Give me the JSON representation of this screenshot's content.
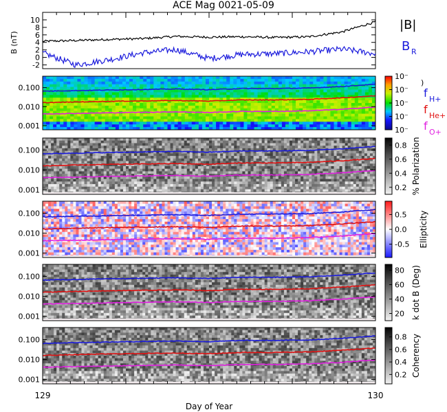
{
  "title": "ACE Mag 0021-05-09",
  "xlabel": "Day of Year",
  "x_ticks": [
    "129",
    "130"
  ],
  "colors": {
    "black": "#000000",
    "blue": "#1a1adc",
    "red": "#e01010",
    "magenta": "#e020e0",
    "ice": "#f1e9ec"
  },
  "chart_data": [
    {
      "type": "line",
      "panel": "magnetic field",
      "ylabel": "B (nT)",
      "ylim": [
        -3,
        12
      ],
      "y_ticks": [
        "10",
        "8",
        "6",
        "4",
        "2",
        "0",
        "-2"
      ],
      "x": [
        129.0,
        129.1,
        129.2,
        129.3,
        129.4,
        129.5,
        129.6,
        129.7,
        129.8,
        129.9,
        130.0
      ],
      "series": [
        {
          "name": "|B|",
          "color": "#000000",
          "values": [
            4.3,
            4.5,
            4.8,
            5.0,
            5.6,
            5.4,
            5.5,
            5.3,
            5.5,
            6.8,
            9.5
          ]
        },
        {
          "name": "B_R",
          "color": "#1a1adc",
          "values": [
            1.2,
            -2.0,
            -0.6,
            1.2,
            2.1,
            -0.3,
            0.8,
            1.0,
            1.5,
            2.2,
            1.0
          ]
        }
      ]
    },
    {
      "type": "heatmap",
      "panel": "power spectrum",
      "y_scale": "log",
      "ylim": [
        0.0006,
        0.4
      ],
      "y_ticks": [
        "0.100",
        "0.010",
        "0.001"
      ],
      "colorbar_ticks": [
        "10⁻",
        "10⁻",
        "10⁻",
        "10⁻",
        "10⁻"
      ],
      "legend": [
        "f_H+",
        "f_He+",
        "f_O+"
      ]
    },
    {
      "type": "heatmap",
      "panel": "polarization",
      "y_scale": "log",
      "ylim": [
        0.0006,
        0.4
      ],
      "y_ticks": [
        "0.100",
        "0.010",
        "0.001"
      ],
      "colorbar_label": "% Polarization",
      "colorbar_ticks": [
        "0.8",
        "0.6",
        "0.4",
        "0.2"
      ],
      "colorbar_values": [
        0.8,
        0.6,
        0.4,
        0.2
      ]
    },
    {
      "type": "heatmap",
      "panel": "ellipticity",
      "y_scale": "log",
      "ylim": [
        0.0006,
        0.4
      ],
      "y_ticks": [
        "0.100",
        "0.010",
        "0.001"
      ],
      "colorbar_label": "Ellipticity",
      "colorbar_ticks": [
        "0.5",
        "0.0",
        "-0.5"
      ],
      "colorbar_values": [
        0.5,
        0.0,
        -0.5
      ]
    },
    {
      "type": "heatmap",
      "panel": "k dot B",
      "y_scale": "log",
      "ylim": [
        0.0006,
        0.4
      ],
      "y_ticks": [
        "0.100",
        "0.010",
        "0.001"
      ],
      "colorbar_label": "k dot B (Deg)",
      "colorbar_ticks": [
        "80",
        "60",
        "40",
        "20"
      ],
      "colorbar_values": [
        80,
        60,
        40,
        20
      ]
    },
    {
      "type": "heatmap",
      "panel": "coherency",
      "y_scale": "log",
      "ylim": [
        0.0006,
        0.4
      ],
      "y_ticks": [
        "0.100",
        "0.010",
        "0.001"
      ],
      "colorbar_label": "Coherency",
      "colorbar_ticks": [
        "0.8",
        "0.6",
        "0.4",
        "0.2"
      ],
      "colorbar_values": [
        0.8,
        0.6,
        0.4,
        0.2
      ]
    }
  ],
  "gyro_lines": {
    "x": [
      129.0,
      129.1,
      129.2,
      129.3,
      129.4,
      129.5,
      129.6,
      129.7,
      129.8,
      129.9,
      130.0
    ],
    "H": [
      0.065,
      0.07,
      0.075,
      0.08,
      0.085,
      0.078,
      0.09,
      0.09,
      0.095,
      0.115,
      0.15
    ],
    "He": [
      0.016,
      0.0175,
      0.019,
      0.02,
      0.021,
      0.0195,
      0.0225,
      0.0225,
      0.024,
      0.029,
      0.037
    ],
    "O": [
      0.0041,
      0.0044,
      0.0047,
      0.005,
      0.0053,
      0.0049,
      0.0056,
      0.0056,
      0.006,
      0.0072,
      0.0094
    ]
  },
  "legend_labels": {
    "B": "|B|",
    "BR_main": "B",
    "BR_sub": "R",
    "fH_main": "f",
    "fH_sub": "H+",
    "fHe_main": "f",
    "fHe_sub": "He+",
    "fO_main": "f",
    "fO_sub": "O+"
  }
}
